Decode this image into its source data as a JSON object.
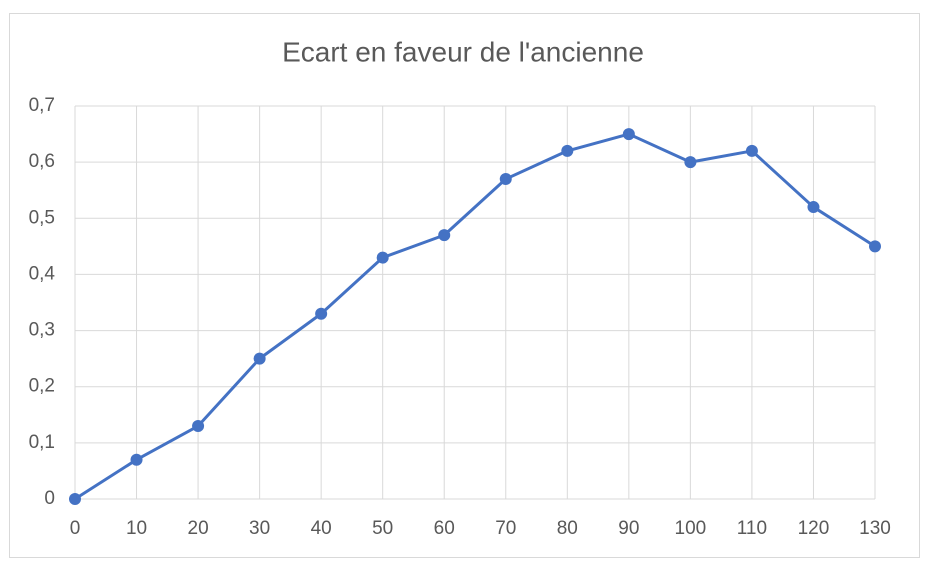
{
  "chart_data": {
    "type": "line",
    "title": "Ecart en faveur de l'ancienne",
    "x": [
      0,
      10,
      20,
      30,
      40,
      50,
      60,
      70,
      80,
      90,
      100,
      110,
      120,
      130
    ],
    "series": [
      {
        "color": "#4472c4",
        "values": [
          0,
          0.07,
          0.13,
          0.25,
          0.33,
          0.43,
          0.47,
          0.57,
          0.62,
          0.65,
          0.6,
          0.62,
          0.52,
          0.45
        ]
      }
    ],
    "xlim": [
      0,
      130
    ],
    "xticks": [
      0,
      10,
      20,
      30,
      40,
      50,
      60,
      70,
      80,
      90,
      100,
      110,
      120,
      130
    ],
    "ylim": [
      0,
      0.7
    ],
    "yticks": [
      0,
      {
        "value": 0.1,
        "label": "0,1"
      },
      {
        "value": 0.2,
        "label": "0,2"
      },
      {
        "value": 0.3,
        "label": "0,3"
      },
      {
        "value": 0.4,
        "label": "0,4"
      },
      {
        "value": 0.5,
        "label": "0,5"
      },
      {
        "value": 0.6,
        "label": "0,6"
      },
      {
        "value": 0.7,
        "label": "0,7"
      }
    ],
    "grid": true
  }
}
